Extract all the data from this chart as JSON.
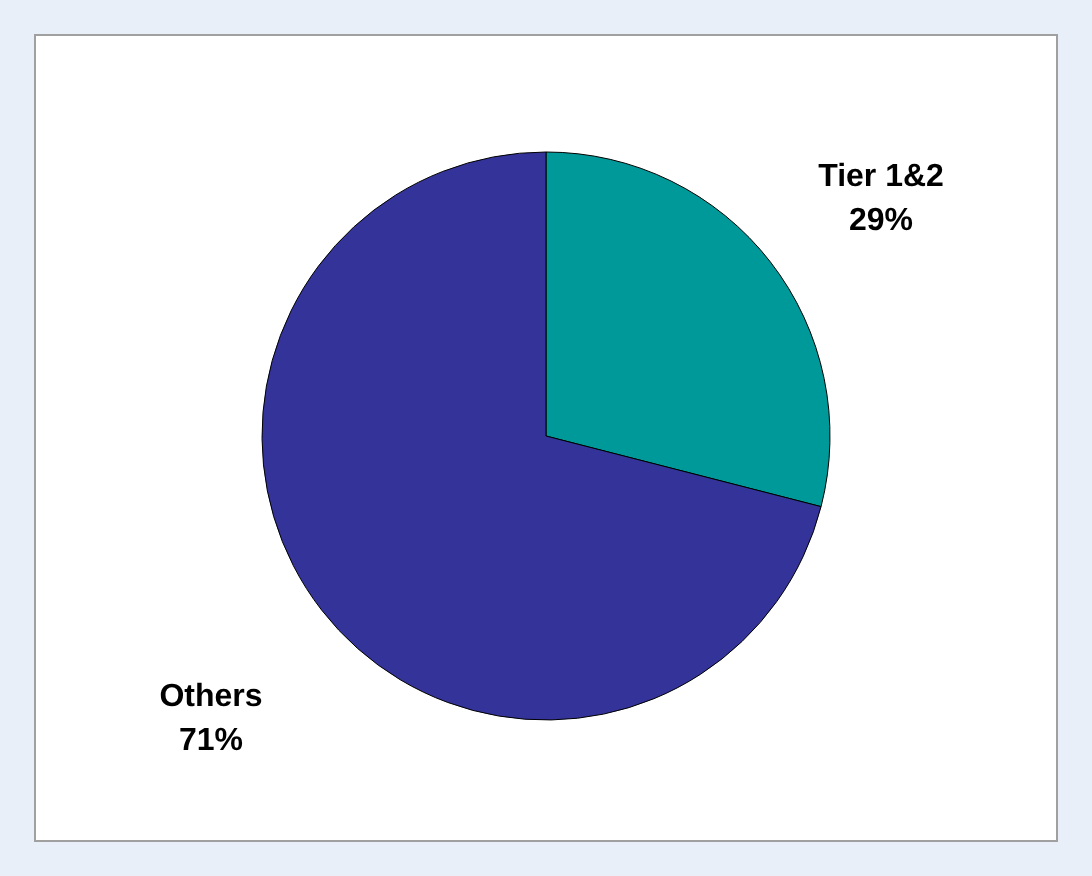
{
  "chart_data": {
    "type": "pie",
    "categories": [
      "Tier 1&2",
      "Others"
    ],
    "values": [
      29,
      71
    ],
    "colors": [
      "#009999",
      "#333399"
    ],
    "value_labels": [
      "29%",
      "71%"
    ]
  }
}
